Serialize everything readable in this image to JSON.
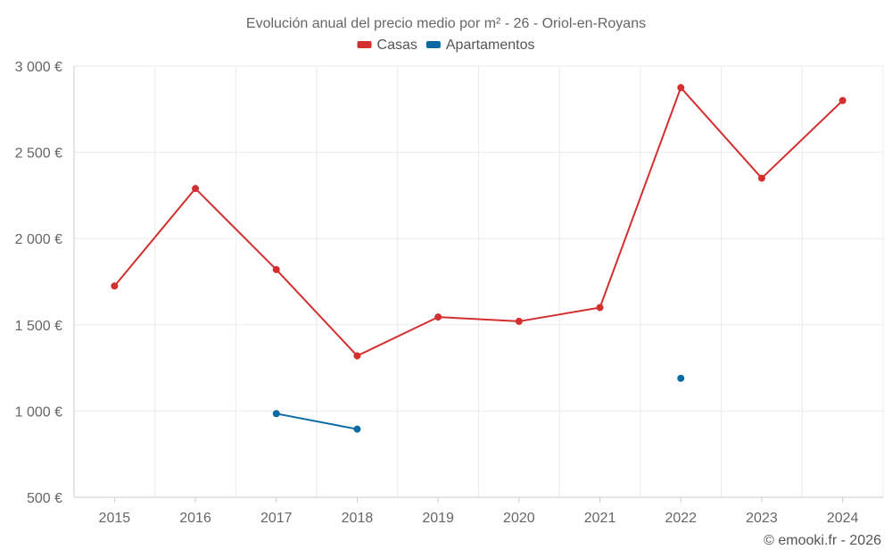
{
  "chart_data": {
    "type": "line",
    "title": "Evolución anual del precio medio por m² - 26 - Oriol-en-Royans",
    "x": [
      "2015",
      "2016",
      "2017",
      "2018",
      "2019",
      "2020",
      "2021",
      "2022",
      "2023",
      "2024"
    ],
    "ylim": [
      500,
      3000
    ],
    "yticks": [
      500,
      1000,
      1500,
      2000,
      2500,
      3000
    ],
    "ytick_labels": [
      "500 €",
      "1 000 €",
      "1 500 €",
      "2 000 €",
      "2 500 €",
      "3 000 €"
    ],
    "grid": true,
    "legend_position": "top-center",
    "series": [
      {
        "name": "Casas",
        "color": "#d32f2f",
        "values": [
          1725,
          2290,
          1820,
          1320,
          1545,
          1520,
          1600,
          2875,
          2350,
          2800
        ]
      },
      {
        "name": "Apartamentos",
        "color": "#0b6aa2",
        "values": [
          null,
          null,
          985,
          895,
          null,
          null,
          null,
          1190,
          null,
          null
        ]
      }
    ]
  },
  "credit": "© emooki.fr - 2026"
}
